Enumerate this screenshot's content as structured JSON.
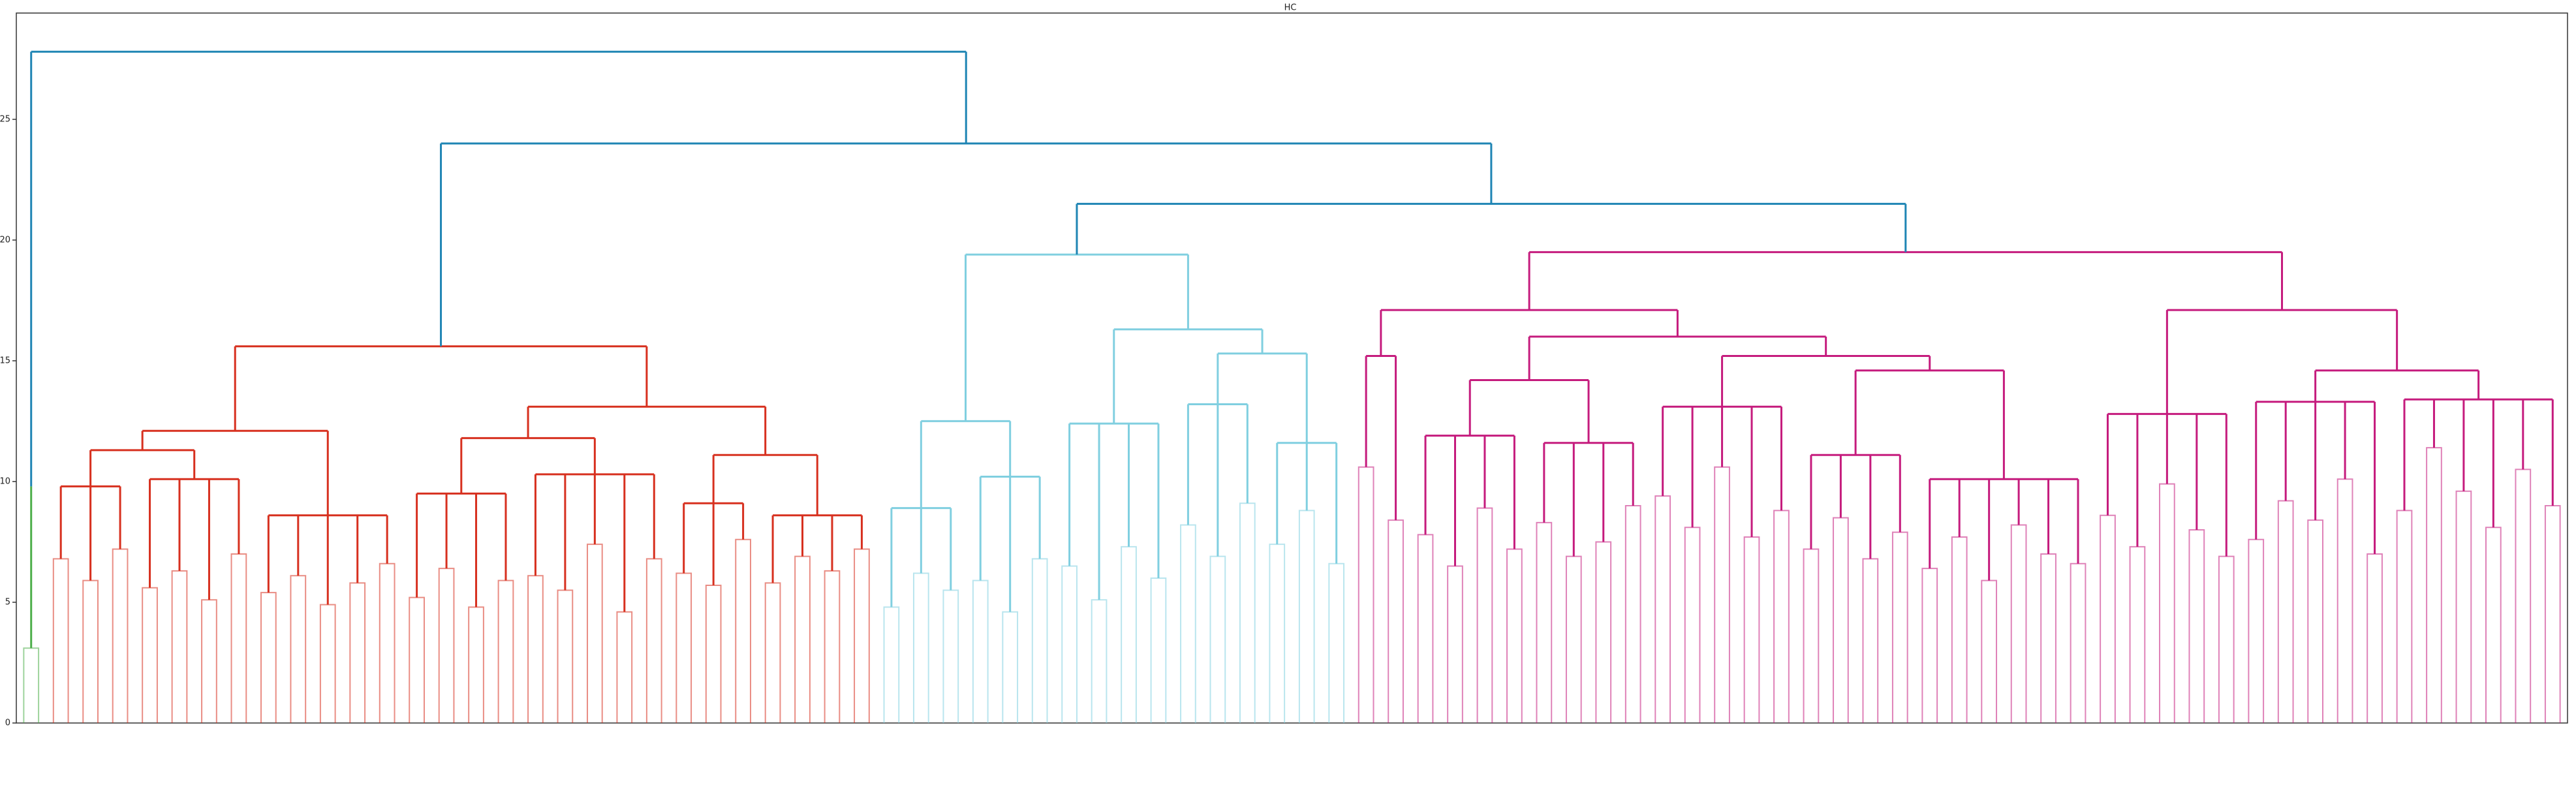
{
  "chart_data": {
    "type": "dendrogram",
    "title": "HC",
    "ylim": [
      0,
      29.4
    ],
    "yticks": [
      0,
      5,
      10,
      15,
      20,
      25
    ],
    "grid": false,
    "tree": {
      "height": 27.8,
      "color": "#1f85b4",
      "children": [
        {
          "height": 9.8,
          "color": "#4daf4a",
          "values": [
            3.1
          ]
        },
        {
          "height": 24.0,
          "children": [
            {
              "height": 15.6,
              "color": "#d7301f",
              "children": [
                {
                  "height": 12.1,
                  "children": [
                    {
                      "height": 11.3,
                      "children": [
                        {
                          "height": 9.8,
                          "values": [
                            6.8,
                            5.9,
                            7.2
                          ]
                        },
                        {
                          "height": 10.1,
                          "values": [
                            5.6,
                            6.3,
                            5.1,
                            7.0
                          ]
                        }
                      ]
                    },
                    {
                      "height": 8.6,
                      "values": [
                        5.4,
                        6.1,
                        4.9,
                        5.8,
                        6.6
                      ]
                    }
                  ]
                },
                {
                  "height": 13.1,
                  "children": [
                    {
                      "height": 11.8,
                      "children": [
                        {
                          "height": 9.5,
                          "values": [
                            5.2,
                            6.4,
                            4.8,
                            5.9
                          ]
                        },
                        {
                          "height": 10.3,
                          "values": [
                            6.1,
                            5.5,
                            7.4,
                            4.6,
                            6.8
                          ]
                        }
                      ]
                    },
                    {
                      "height": 11.1,
                      "children": [
                        {
                          "height": 9.1,
                          "values": [
                            6.2,
                            5.7,
                            7.6
                          ]
                        },
                        {
                          "height": 8.6,
                          "values": [
                            5.8,
                            6.9,
                            6.3,
                            7.2
                          ]
                        }
                      ]
                    }
                  ]
                }
              ]
            },
            {
              "height": 21.5,
              "children": [
                {
                  "height": 19.4,
                  "color": "#80cfe0",
                  "children": [
                    {
                      "height": 12.5,
                      "children": [
                        {
                          "height": 8.9,
                          "values": [
                            4.8,
                            6.2,
                            5.5
                          ]
                        },
                        {
                          "height": 10.2,
                          "values": [
                            5.9,
                            4.6,
                            6.8
                          ]
                        }
                      ]
                    },
                    {
                      "height": 16.3,
                      "children": [
                        {
                          "height": 12.4,
                          "values": [
                            6.5,
                            5.1,
                            7.3,
                            6.0
                          ]
                        },
                        {
                          "height": 15.3,
                          "children": [
                            {
                              "height": 13.2,
                              "values": [
                                8.2,
                                6.9,
                                9.1
                              ]
                            },
                            {
                              "height": 11.6,
                              "values": [
                                7.4,
                                8.8,
                                6.6
                              ]
                            }
                          ]
                        }
                      ]
                    }
                  ]
                },
                {
                  "height": 19.5,
                  "color": "#c51b7d",
                  "children": [
                    {
                      "height": 17.1,
                      "children": [
                        {
                          "height": 15.2,
                          "values": [
                            10.6,
                            8.4
                          ]
                        },
                        {
                          "height": 16.0,
                          "children": [
                            {
                              "height": 14.2,
                              "children": [
                                {
                                  "height": 11.9,
                                  "values": [
                                    7.8,
                                    6.5,
                                    8.9,
                                    7.2
                                  ]
                                },
                                {
                                  "height": 11.6,
                                  "values": [
                                    8.3,
                                    6.9,
                                    7.5,
                                    9.0
                                  ]
                                }
                              ]
                            },
                            {
                              "height": 15.2,
                              "children": [
                                {
                                  "height": 13.1,
                                  "values": [
                                    9.4,
                                    8.1,
                                    10.6,
                                    7.7,
                                    8.8
                                  ]
                                },
                                {
                                  "height": 14.6,
                                  "children": [
                                    {
                                      "height": 11.1,
                                      "values": [
                                        7.2,
                                        8.5,
                                        6.8,
                                        7.9
                                      ]
                                    },
                                    {
                                      "height": 10.1,
                                      "values": [
                                        6.4,
                                        7.7,
                                        5.9,
                                        8.2,
                                        7.0,
                                        6.6
                                      ]
                                    }
                                  ]
                                }
                              ]
                            }
                          ]
                        }
                      ]
                    },
                    {
                      "height": 17.1,
                      "children": [
                        {
                          "height": 12.8,
                          "values": [
                            8.6,
                            7.3,
                            9.9,
                            8.0,
                            6.9
                          ]
                        },
                        {
                          "height": 14.6,
                          "children": [
                            {
                              "height": 13.3,
                              "values": [
                                7.6,
                                9.2,
                                8.4,
                                10.1,
                                7.0
                              ]
                            },
                            {
                              "height": 13.4,
                              "values": [
                                8.8,
                                11.4,
                                9.6,
                                8.1,
                                10.5,
                                9.0
                              ]
                            }
                          ]
                        }
                      ]
                    }
                  ]
                }
              ]
            }
          ]
        }
      ]
    }
  }
}
